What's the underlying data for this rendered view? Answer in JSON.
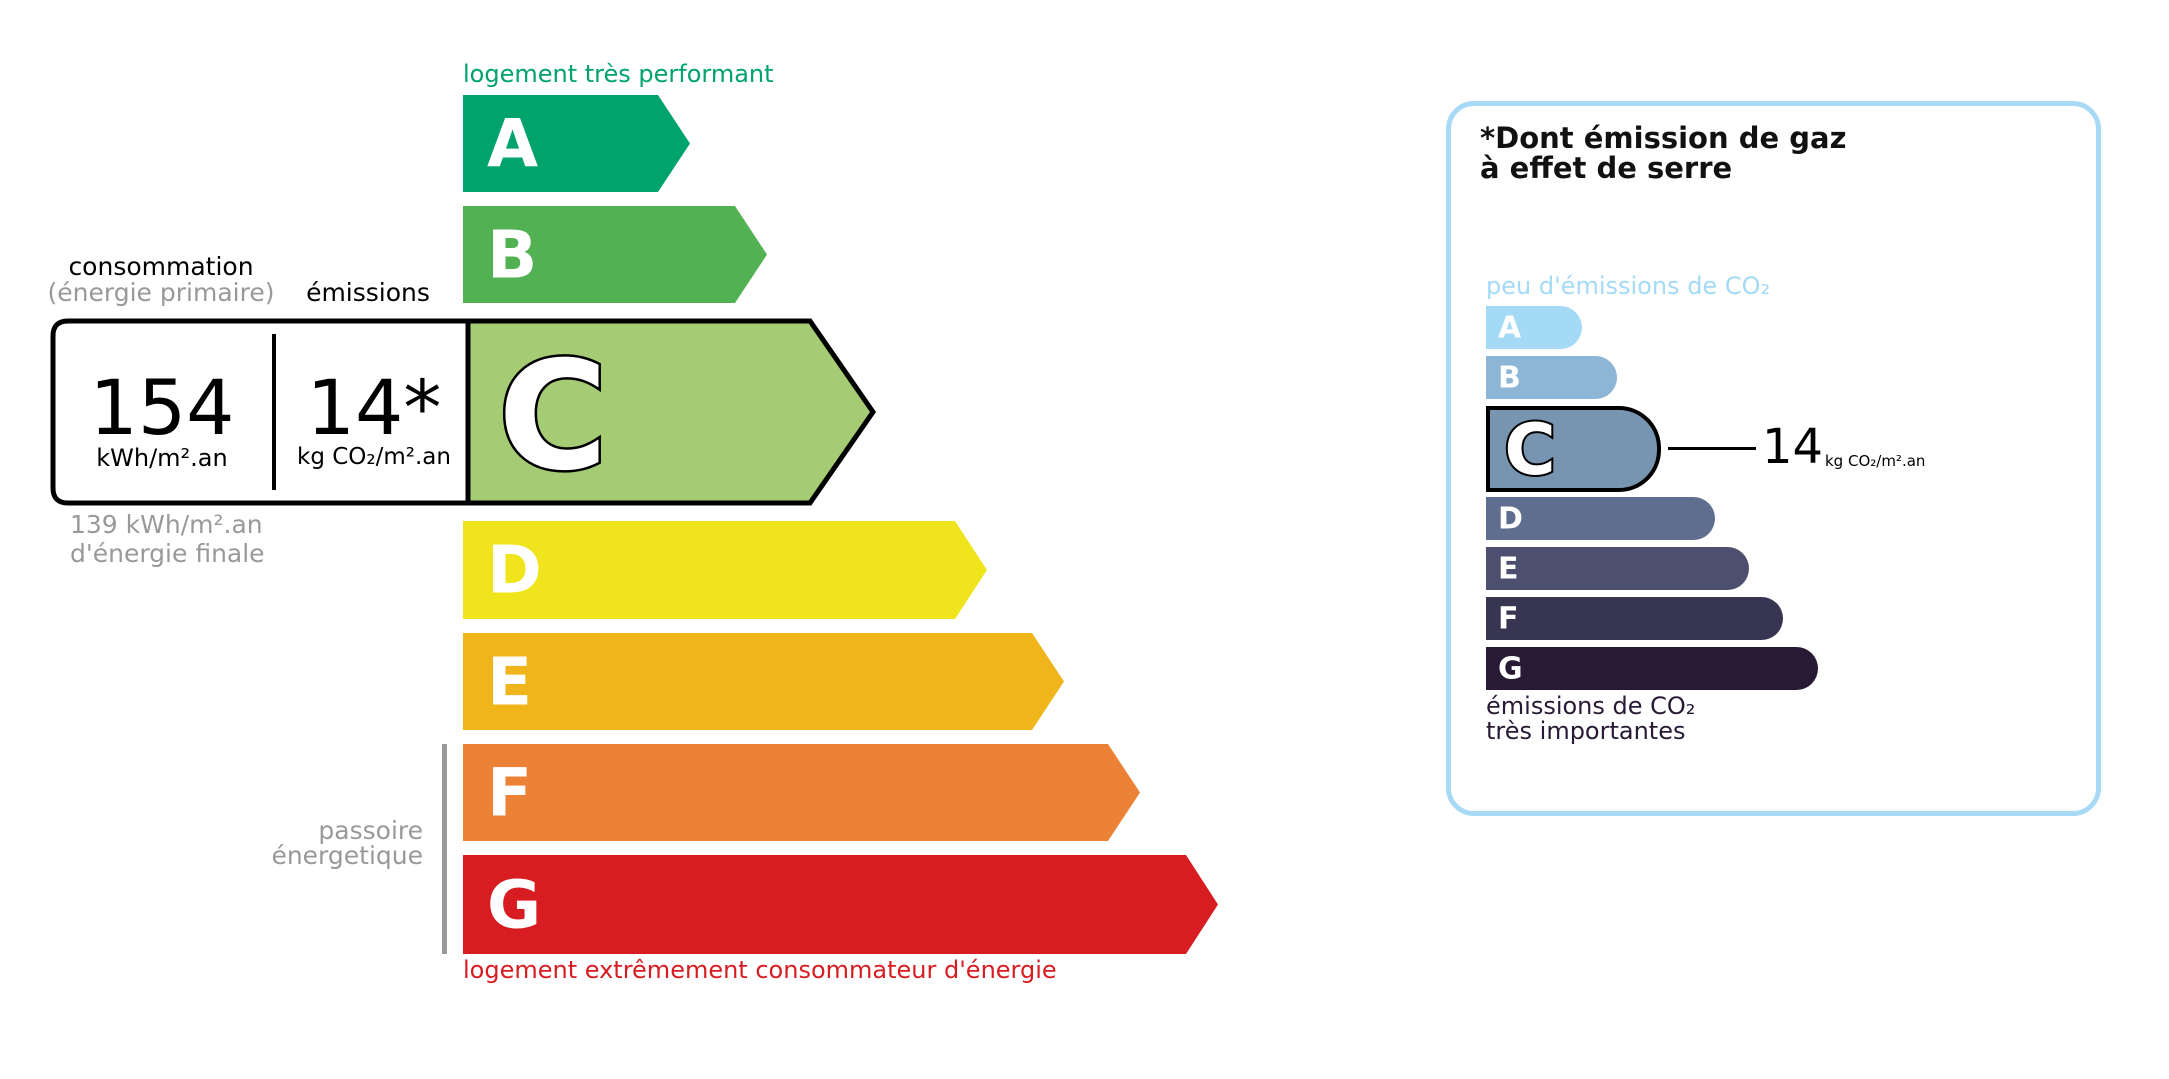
{
  "energy": {
    "top_label": "logement très performant",
    "bottom_label": "logement extrêmement consommateur d'énergie",
    "classes": [
      {
        "letter": "A",
        "color": "#00a36c"
      },
      {
        "letter": "B",
        "color": "#52b153"
      },
      {
        "letter": "C",
        "color": "#a5cc74"
      },
      {
        "letter": "D",
        "color": "#f0e51c"
      },
      {
        "letter": "E",
        "color": "#efb51a"
      },
      {
        "letter": "F",
        "color": "#eb8235"
      },
      {
        "letter": "G",
        "color": "#d71d21"
      }
    ],
    "current_class": "C",
    "consumption_label": "consommation",
    "consumption_sub": "(énergie primaire)",
    "emissions_label": "émissions",
    "consumption_value": "154",
    "consumption_unit": "kWh/m².an",
    "emissions_value": "14*",
    "emissions_unit": "kg CO₂/m².an",
    "final_energy_value": "139 kWh/m².an",
    "final_energy_label": "d'énergie finale",
    "passoire_line1": "passoire",
    "passoire_line2": "énergetique"
  },
  "ges": {
    "title_line1": "*Dont émission de gaz",
    "title_line2": "à effet de serre",
    "top_label": "peu d'émissions de CO₂",
    "bottom_line1": "émissions de CO₂",
    "bottom_line2": "très importantes",
    "classes": [
      {
        "letter": "A",
        "color": "#a4daf6"
      },
      {
        "letter": "B",
        "color": "#8db5d5"
      },
      {
        "letter": "C",
        "color": "#7794b1"
      },
      {
        "letter": "D",
        "color": "#5f6d8f"
      },
      {
        "letter": "E",
        "color": "#4c4f6e"
      },
      {
        "letter": "F",
        "color": "#383552"
      },
      {
        "letter": "G",
        "color": "#281a34"
      }
    ],
    "current_class": "C",
    "value": "14",
    "unit": "kg CO₂/m².an"
  }
}
